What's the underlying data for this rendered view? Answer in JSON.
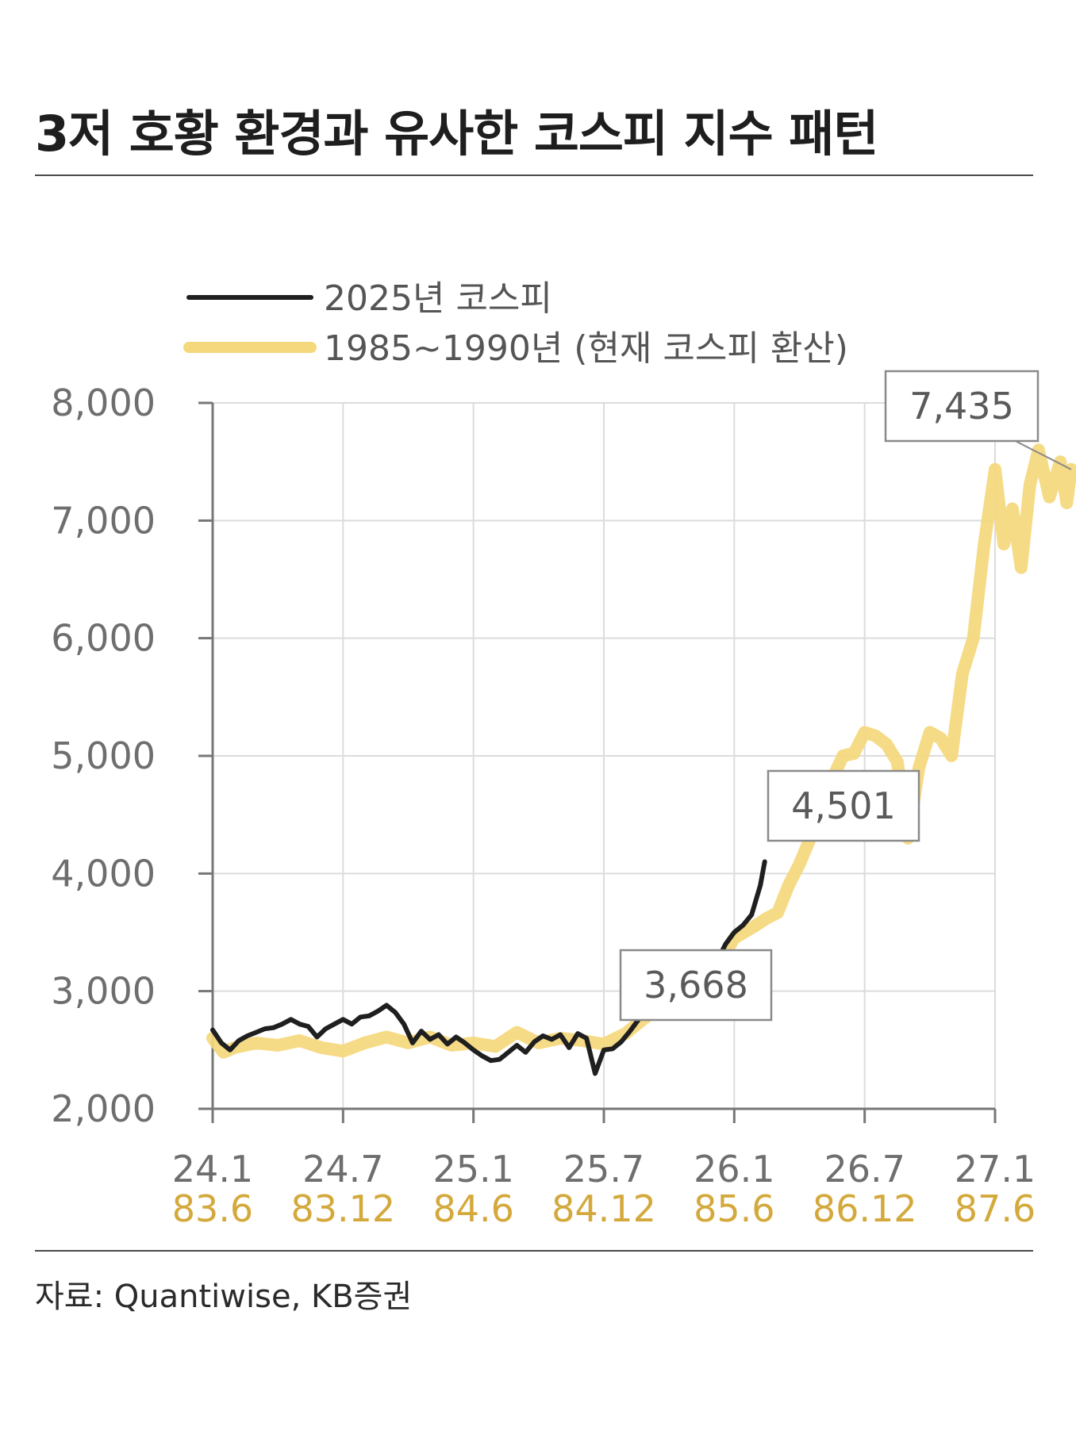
{
  "title": "3저 호황 환경과 유사한 코스피 지수 패턴",
  "source": "자료: Quantiwise, KB증권",
  "chart_data": {
    "type": "line",
    "ylim": [
      2000,
      8000
    ],
    "y_ticks": [
      "2,000",
      "3,000",
      "4,000",
      "5,000",
      "6,000",
      "7,000",
      "8,000"
    ],
    "x_ticks_primary": [
      "24.1",
      "24.7",
      "25.1",
      "25.7",
      "26.1",
      "26.7",
      "27.1"
    ],
    "x_ticks_secondary": [
      "83.6",
      "83.12",
      "84.6",
      "84.12",
      "85.6",
      "86.12",
      "87.6"
    ],
    "x_range_months": [
      0,
      36
    ],
    "grid": true,
    "legend_position": "top-left",
    "series": [
      {
        "name": "2025년 코스피",
        "color": "#1f1f1f",
        "points": [
          [
            0.0,
            2670
          ],
          [
            0.4,
            2560
          ],
          [
            0.8,
            2500
          ],
          [
            1.2,
            2580
          ],
          [
            1.6,
            2620
          ],
          [
            2.0,
            2650
          ],
          [
            2.4,
            2680
          ],
          [
            2.8,
            2690
          ],
          [
            3.2,
            2720
          ],
          [
            3.6,
            2760
          ],
          [
            4.0,
            2720
          ],
          [
            4.4,
            2700
          ],
          [
            4.8,
            2610
          ],
          [
            5.2,
            2680
          ],
          [
            5.6,
            2720
          ],
          [
            6.0,
            2760
          ],
          [
            6.4,
            2720
          ],
          [
            6.8,
            2780
          ],
          [
            7.2,
            2790
          ],
          [
            7.6,
            2830
          ],
          [
            8.0,
            2880
          ],
          [
            8.4,
            2820
          ],
          [
            8.8,
            2720
          ],
          [
            9.2,
            2560
          ],
          [
            9.6,
            2660
          ],
          [
            10.0,
            2590
          ],
          [
            10.4,
            2630
          ],
          [
            10.8,
            2550
          ],
          [
            11.2,
            2610
          ],
          [
            11.6,
            2560
          ],
          [
            12.0,
            2500
          ],
          [
            12.4,
            2450
          ],
          [
            12.8,
            2410
          ],
          [
            13.2,
            2420
          ],
          [
            13.6,
            2480
          ],
          [
            14.0,
            2540
          ],
          [
            14.4,
            2480
          ],
          [
            14.8,
            2570
          ],
          [
            15.2,
            2620
          ],
          [
            15.6,
            2590
          ],
          [
            16.0,
            2630
          ],
          [
            16.4,
            2520
          ],
          [
            16.8,
            2640
          ],
          [
            17.2,
            2600
          ],
          [
            17.6,
            2300
          ],
          [
            18.0,
            2500
          ],
          [
            18.4,
            2510
          ],
          [
            18.8,
            2570
          ],
          [
            19.2,
            2660
          ],
          [
            19.6,
            2760
          ],
          [
            20.0,
            2880
          ],
          [
            20.4,
            3000
          ],
          [
            20.8,
            3100
          ],
          [
            21.2,
            3150
          ],
          [
            21.6,
            3200
          ],
          [
            22.0,
            3220
          ],
          [
            22.4,
            3180
          ],
          [
            22.8,
            3160
          ],
          [
            23.2,
            3250
          ],
          [
            23.6,
            3400
          ],
          [
            24.0,
            3500
          ],
          [
            24.4,
            3560
          ],
          [
            24.8,
            3650
          ],
          [
            25.2,
            3900
          ],
          [
            25.4,
            4100
          ]
        ]
      },
      {
        "name": "1985~1990년 (현재 코스피 환산)",
        "color": "#f5d87c",
        "points": [
          [
            0.0,
            2600
          ],
          [
            0.5,
            2480
          ],
          [
            1.0,
            2520
          ],
          [
            2.0,
            2560
          ],
          [
            3.0,
            2540
          ],
          [
            4.0,
            2580
          ],
          [
            5.0,
            2520
          ],
          [
            6.0,
            2490
          ],
          [
            7.0,
            2560
          ],
          [
            8.0,
            2610
          ],
          [
            9.0,
            2560
          ],
          [
            10.0,
            2610
          ],
          [
            11.0,
            2540
          ],
          [
            12.0,
            2560
          ],
          [
            13.0,
            2530
          ],
          [
            14.0,
            2650
          ],
          [
            15.0,
            2560
          ],
          [
            16.0,
            2600
          ],
          [
            17.0,
            2580
          ],
          [
            18.0,
            2550
          ],
          [
            19.0,
            2640
          ],
          [
            20.0,
            2790
          ],
          [
            21.0,
            2900
          ],
          [
            22.0,
            3050
          ],
          [
            23.0,
            3150
          ],
          [
            24.0,
            3450
          ],
          [
            25.0,
            3560
          ],
          [
            25.5,
            3620
          ],
          [
            26.0,
            3668
          ],
          [
            26.5,
            3900
          ],
          [
            27.0,
            4080
          ],
          [
            27.5,
            4300
          ],
          [
            28.0,
            4501
          ],
          [
            28.5,
            4800
          ],
          [
            29.0,
            5000
          ],
          [
            29.5,
            5020
          ],
          [
            30.0,
            5200
          ],
          [
            30.5,
            5170
          ],
          [
            31.0,
            5100
          ],
          [
            31.5,
            4950
          ],
          [
            32.0,
            4300
          ],
          [
            32.5,
            4900
          ],
          [
            33.0,
            5200
          ],
          [
            33.5,
            5150
          ],
          [
            34.0,
            5000
          ],
          [
            34.5,
            5700
          ],
          [
            35.0,
            6000
          ],
          [
            35.5,
            6800
          ],
          [
            36.0,
            7435
          ],
          [
            36.4,
            6800
          ],
          [
            36.8,
            7100
          ],
          [
            37.2,
            6600
          ],
          [
            37.6,
            7300
          ],
          [
            38.0,
            7600
          ],
          [
            38.5,
            7200
          ],
          [
            39.0,
            7500
          ],
          [
            39.3,
            7150
          ],
          [
            39.5,
            7435
          ]
        ]
      }
    ],
    "annotations": [
      {
        "label": "3,668",
        "x": 23.2,
        "y": 3200
      },
      {
        "label": "4,501",
        "x": 28.0,
        "y": 4501
      },
      {
        "label": "7,435",
        "x": 39.5,
        "y": 7435
      }
    ]
  }
}
